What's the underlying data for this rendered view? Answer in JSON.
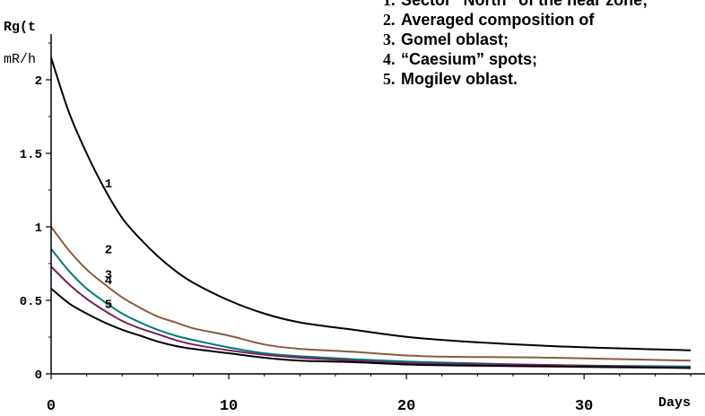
{
  "chart_data": {
    "type": "line",
    "ylabel_top": "Rg(t",
    "yunit": "mR/h",
    "xlabel": "Days",
    "xlim": [
      0,
      36
    ],
    "ylim": [
      0,
      2.25
    ],
    "xticks": [
      "0",
      "10",
      "20",
      "30"
    ],
    "xtick_values": [
      0,
      10,
      20,
      30
    ],
    "yticks": [
      "0",
      "0.5",
      "1",
      "1.5",
      "2"
    ],
    "ytick_values": [
      0,
      0.5,
      1,
      1.5,
      2
    ],
    "legend": [
      {
        "num": "1.",
        "text": "Sector \"North\" of the near zone;"
      },
      {
        "num": "2.",
        "text": "Averaged composition of"
      },
      {
        "num": "3.",
        "text": "Gomel oblast;"
      },
      {
        "num": "4.",
        "text": "“Caesium” spots;"
      },
      {
        "num": "5.",
        "text": "Mogilev oblast."
      }
    ],
    "series": [
      {
        "label": "1",
        "color": "#000000",
        "x": [
          0,
          1,
          2,
          3,
          4,
          5,
          6,
          7,
          8,
          10,
          12,
          14,
          17,
          21,
          28,
          36
        ],
        "y": [
          2.15,
          1.78,
          1.5,
          1.26,
          1.06,
          0.92,
          0.8,
          0.7,
          0.62,
          0.5,
          0.41,
          0.35,
          0.3,
          0.24,
          0.19,
          0.16
        ],
        "label_x": 1.6,
        "label_y": 1.3
      },
      {
        "label": "2",
        "color": "#8b5a3c",
        "x": [
          0,
          1,
          2,
          3,
          4,
          5,
          6,
          7,
          8,
          10,
          12,
          14,
          17,
          21,
          28,
          36
        ],
        "y": [
          1.0,
          0.84,
          0.71,
          0.61,
          0.52,
          0.45,
          0.39,
          0.35,
          0.31,
          0.26,
          0.2,
          0.17,
          0.15,
          0.12,
          0.11,
          0.09
        ],
        "label_x": 1.6,
        "label_y": 0.85
      },
      {
        "label": "3",
        "color": "#007a78",
        "x": [
          0,
          1,
          2,
          3,
          4,
          5,
          6,
          7,
          8,
          10,
          12,
          14,
          17,
          21,
          28,
          36
        ],
        "y": [
          0.85,
          0.7,
          0.58,
          0.49,
          0.41,
          0.35,
          0.3,
          0.26,
          0.23,
          0.18,
          0.14,
          0.12,
          0.1,
          0.08,
          0.06,
          0.05
        ],
        "label_x": 1.6,
        "label_y": 0.68
      },
      {
        "label": "4",
        "color": "#7a1f5c",
        "x": [
          0,
          1,
          2,
          3,
          4,
          5,
          6,
          7,
          8,
          10,
          12,
          14,
          17,
          21,
          28,
          36
        ],
        "y": [
          0.73,
          0.61,
          0.51,
          0.43,
          0.36,
          0.31,
          0.27,
          0.23,
          0.2,
          0.16,
          0.13,
          0.11,
          0.09,
          0.07,
          0.06,
          0.04
        ],
        "label_x": 1.6,
        "label_y": 0.64
      },
      {
        "label": "5",
        "color": "#000000",
        "x": [
          0,
          1,
          2,
          3,
          4,
          5,
          6,
          7,
          8,
          10,
          12,
          14,
          17,
          21,
          28,
          36
        ],
        "y": [
          0.58,
          0.48,
          0.41,
          0.35,
          0.3,
          0.26,
          0.22,
          0.19,
          0.17,
          0.14,
          0.11,
          0.09,
          0.08,
          0.06,
          0.05,
          0.04
        ],
        "label_x": 1.6,
        "label_y": 0.48
      }
    ]
  }
}
